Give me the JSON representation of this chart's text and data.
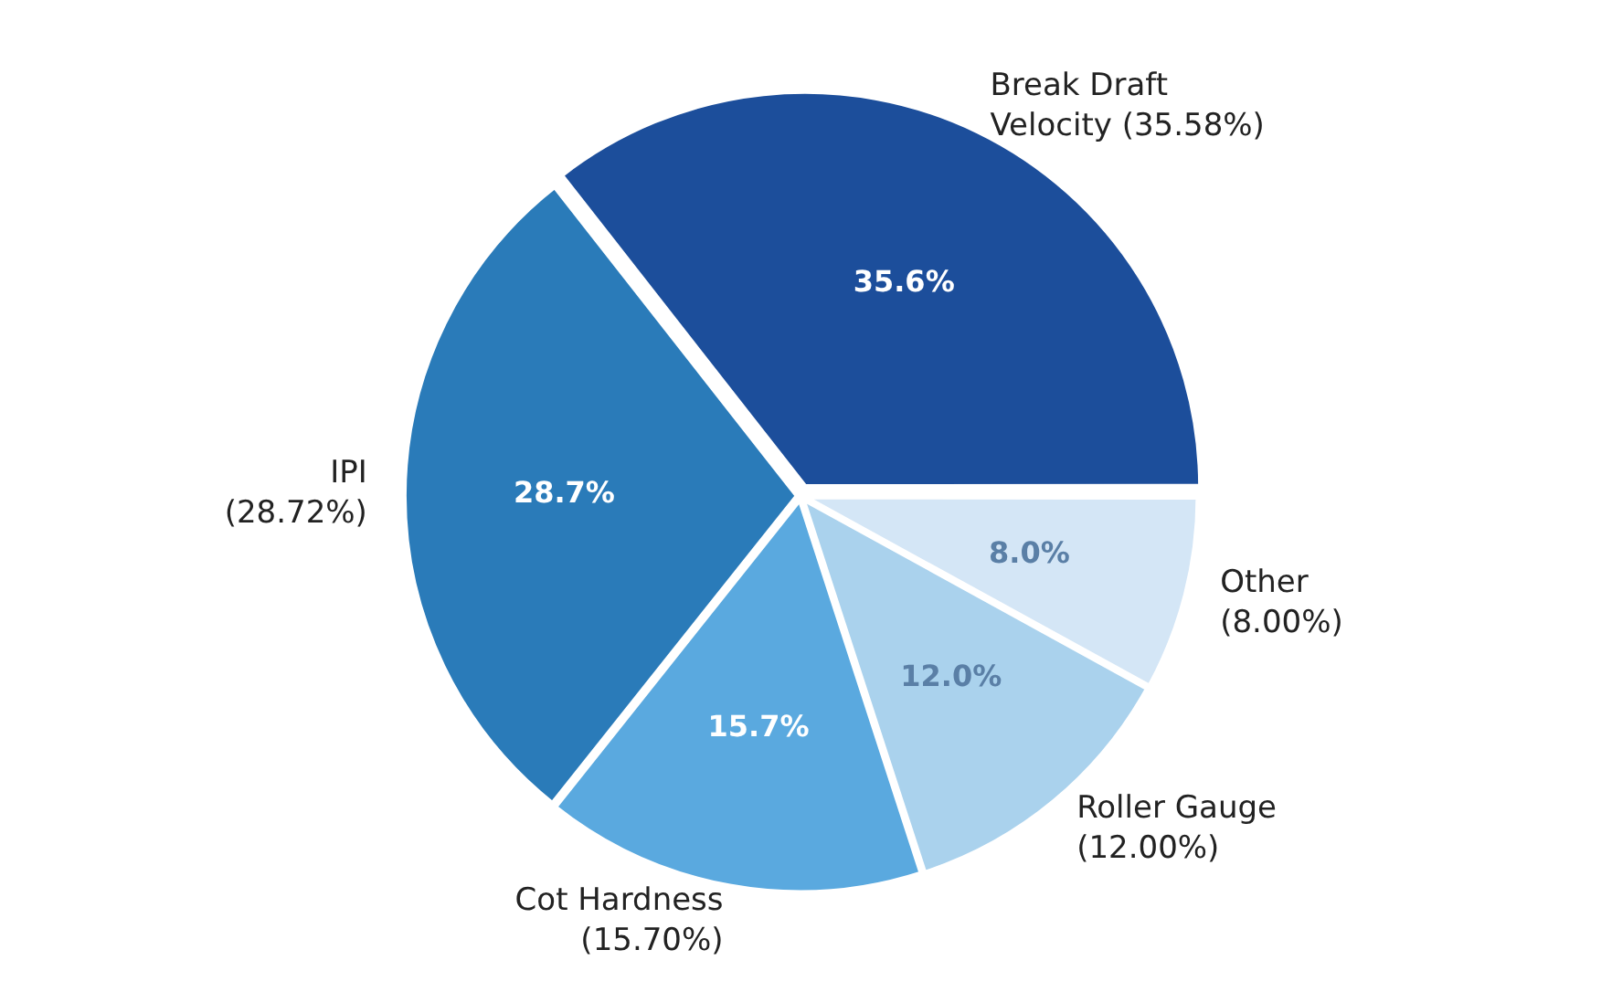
{
  "chart_data": {
    "type": "pie",
    "categories": [
      "Break Draft\nVelocity (35.58%)",
      "IPI\n(28.72%)",
      "Cot Hardness\n(15.70%)",
      "Roller Gauge\n(12.00%)",
      "Other\n(8.00%)"
    ],
    "values": [
      35.58,
      28.72,
      15.7,
      12.0,
      8.0
    ],
    "colors": [
      "#1c4e9b",
      "#2a7bb9",
      "#5aa9df",
      "#aad2ed",
      "#d4e6f6"
    ],
    "value_labels": [
      "35.6%",
      "28.7%",
      "15.7%",
      "12.0%",
      "8.0%"
    ],
    "legend": false
  }
}
